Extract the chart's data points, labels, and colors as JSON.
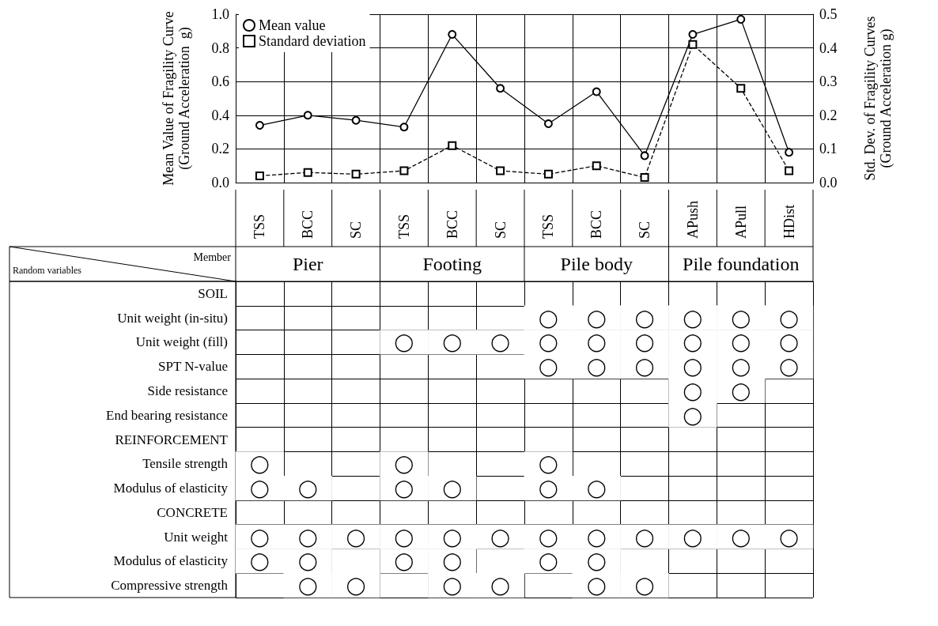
{
  "chart_data": [
    {
      "type": "line",
      "categories": [
        null,
        null,
        null,
        null,
        null,
        null,
        null,
        null,
        null,
        null,
        null,
        null
      ],
      "ylabel": "Mean Value of Fragility Curve\n(Ground Acceleration  g)",
      "y2label": "Std. Dev. of Fragility Curves\n(Ground Acceleration g)",
      "ylim": [
        0,
        1
      ],
      "yticks": [
        {
          "value": 0,
          "label": "0.0"
        },
        0.2,
        0.4,
        0.6,
        0.8,
        {
          "value": 1,
          "label": "1.0"
        }
      ],
      "y2lim": [
        0,
        0.5
      ],
      "y2ticks": [
        {
          "value": 0,
          "label": "0.0"
        },
        0.1,
        0.2,
        0.3,
        0.4,
        0.5
      ],
      "grid": true,
      "legend": "top left",
      "series": [
        {
          "name": "Mean value",
          "color": "#000000",
          "marker": "circle",
          "line_style": "solid",
          "values": [
            0.34,
            0.4,
            0.37,
            0.33,
            0.88,
            0.56,
            0.35,
            0.54,
            0.16,
            0.88,
            0.97,
            0.18
          ]
        },
        {
          "name": "Standard deviation",
          "color": "#000000",
          "marker": "square",
          "line_style": "dashed",
          "axis": "y2",
          "values": [
            0.02,
            0.03,
            0.025,
            0.035,
            0.11,
            0.035,
            0.025,
            0.05,
            0.015,
            0.41,
            0.28,
            0.035
          ]
        }
      ]
    },
    {
      "type": "heatmap",
      "categories": [
        "TSS",
        "BCC",
        "SC",
        "TSS",
        "BCC",
        "SC",
        "TSS",
        "BCC",
        "SC",
        "APush",
        "APull",
        "HDist"
      ],
      "annotations": [
        "Member",
        "Random variables",
        "Pier",
        "Footing",
        "Pile body",
        "Pile foundation"
      ],
      "y_categories": [
        "SOIL",
        "Unit weight (in-situ)",
        "Unit weight (fill)",
        "SPT N-value",
        "Side resistance",
        "End bearing resistance",
        "REINFORCEMENT",
        "Tensile strength",
        "Modulus of elasticity",
        "CONCRETE",
        "Unit weight",
        "Modulus of elasticity",
        "Compressive strength"
      ],
      "cells": [
        [
          null,
          null,
          null,
          null,
          null,
          null,
          null,
          null,
          null,
          null,
          null,
          null
        ],
        [
          null,
          null,
          null,
          null,
          null,
          null,
          "◯",
          "◯",
          "◯",
          "◯",
          "◯",
          "◯"
        ],
        [
          null,
          null,
          null,
          "◯",
          "◯",
          "◯",
          "◯",
          "◯",
          "◯",
          "◯",
          "◯",
          "◯"
        ],
        [
          null,
          null,
          null,
          null,
          null,
          null,
          "◯",
          "◯",
          "◯",
          "◯",
          "◯",
          "◯"
        ],
        [
          null,
          null,
          null,
          null,
          null,
          null,
          null,
          null,
          null,
          "◯",
          "◯",
          null
        ],
        [
          null,
          null,
          null,
          null,
          null,
          null,
          null,
          null,
          null,
          "◯",
          null,
          null
        ],
        [
          null,
          null,
          null,
          null,
          null,
          null,
          null,
          null,
          null,
          null,
          null,
          null
        ],
        [
          "◯",
          null,
          null,
          "◯",
          null,
          null,
          "◯",
          null,
          null,
          null,
          null,
          null
        ],
        [
          "◯",
          "◯",
          null,
          "◯",
          "◯",
          null,
          "◯",
          "◯",
          null,
          null,
          null,
          null
        ],
        [
          null,
          null,
          null,
          null,
          null,
          null,
          null,
          null,
          null,
          null,
          null,
          null
        ],
        [
          "◯",
          "◯",
          "◯",
          "◯",
          "◯",
          "◯",
          "◯",
          "◯",
          "◯",
          "◯",
          "◯",
          "◯"
        ],
        [
          "◯",
          "◯",
          null,
          "◯",
          "◯",
          null,
          "◯",
          "◯",
          null,
          null,
          null,
          null
        ],
        [
          null,
          "◯",
          "◯",
          null,
          "◯",
          "◯",
          null,
          "◯",
          "◯",
          null,
          null,
          null
        ]
      ]
    }
  ]
}
